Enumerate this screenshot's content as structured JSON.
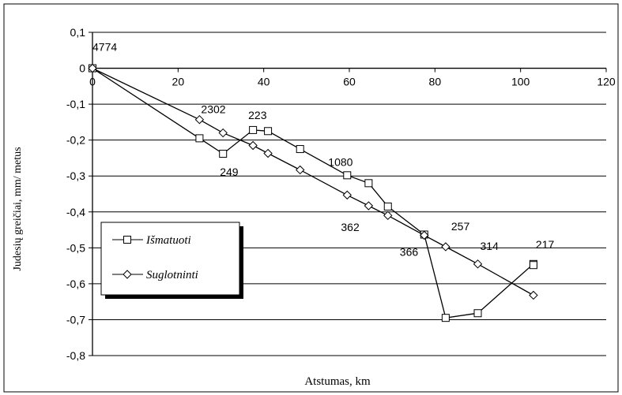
{
  "chart_data": {
    "type": "line",
    "xlabel": "Atstumas, km",
    "ylabel": "Judesių greičiai, mm/ metus",
    "xlim": [
      0,
      120
    ],
    "ylim": [
      -0.8,
      0.1
    ],
    "x_ticks": [
      "0",
      "20",
      "40",
      "60",
      "80",
      "100",
      "120"
    ],
    "y_ticks": [
      "0,1",
      "0",
      "-0,1",
      "-0,2",
      "-0,3",
      "-0,4",
      "-0,5",
      "-0,6",
      "-0,7",
      "-0,8"
    ],
    "grid": "horizontal",
    "legend_position": "lower-left",
    "series": [
      {
        "name": "Išmatuoti",
        "marker": "square",
        "points": [
          [
            0,
            0
          ],
          [
            25,
            -0.195
          ],
          [
            30.5,
            -0.238
          ],
          [
            37.5,
            -0.172
          ],
          [
            41,
            -0.175
          ],
          [
            48.5,
            -0.225
          ],
          [
            59.5,
            -0.298
          ],
          [
            64.5,
            -0.32
          ],
          [
            69,
            -0.385
          ],
          [
            77.5,
            -0.463
          ],
          [
            82.5,
            -0.695
          ],
          [
            90,
            -0.682
          ],
          [
            103,
            -0.545
          ],
          [
            103,
            -0.548
          ]
        ]
      },
      {
        "name": "Suglotninti",
        "marker": "diamond",
        "points": [
          [
            0,
            0
          ],
          [
            25,
            -0.143
          ],
          [
            30.5,
            -0.18
          ],
          [
            37.5,
            -0.215
          ],
          [
            41,
            -0.237
          ],
          [
            48.5,
            -0.283
          ],
          [
            59.5,
            -0.353
          ],
          [
            64.5,
            -0.383
          ],
          [
            69,
            -0.41
          ],
          [
            77.5,
            -0.465
          ],
          [
            82.5,
            -0.497
          ],
          [
            90,
            -0.545
          ],
          [
            103,
            -0.632
          ]
        ]
      }
    ],
    "annotations": [
      {
        "text": "4774",
        "x": 0,
        "y": 0
      },
      {
        "text": "2302",
        "x": 25,
        "y": -0.143
      },
      {
        "text": "223",
        "x": 37.5,
        "y": -0.172
      },
      {
        "text": "249",
        "x": 30.5,
        "y": -0.238
      },
      {
        "text": "1080",
        "x": 59.5,
        "y": -0.298
      },
      {
        "text": "362",
        "x": 64.5,
        "y": -0.383
      },
      {
        "text": "257",
        "x": 82.5,
        "y": -0.497
      },
      {
        "text": "366",
        "x": 77.5,
        "y": -0.463
      },
      {
        "text": "314",
        "x": 90,
        "y": -0.545
      },
      {
        "text": "217",
        "x": 103,
        "y": -0.545
      }
    ]
  }
}
